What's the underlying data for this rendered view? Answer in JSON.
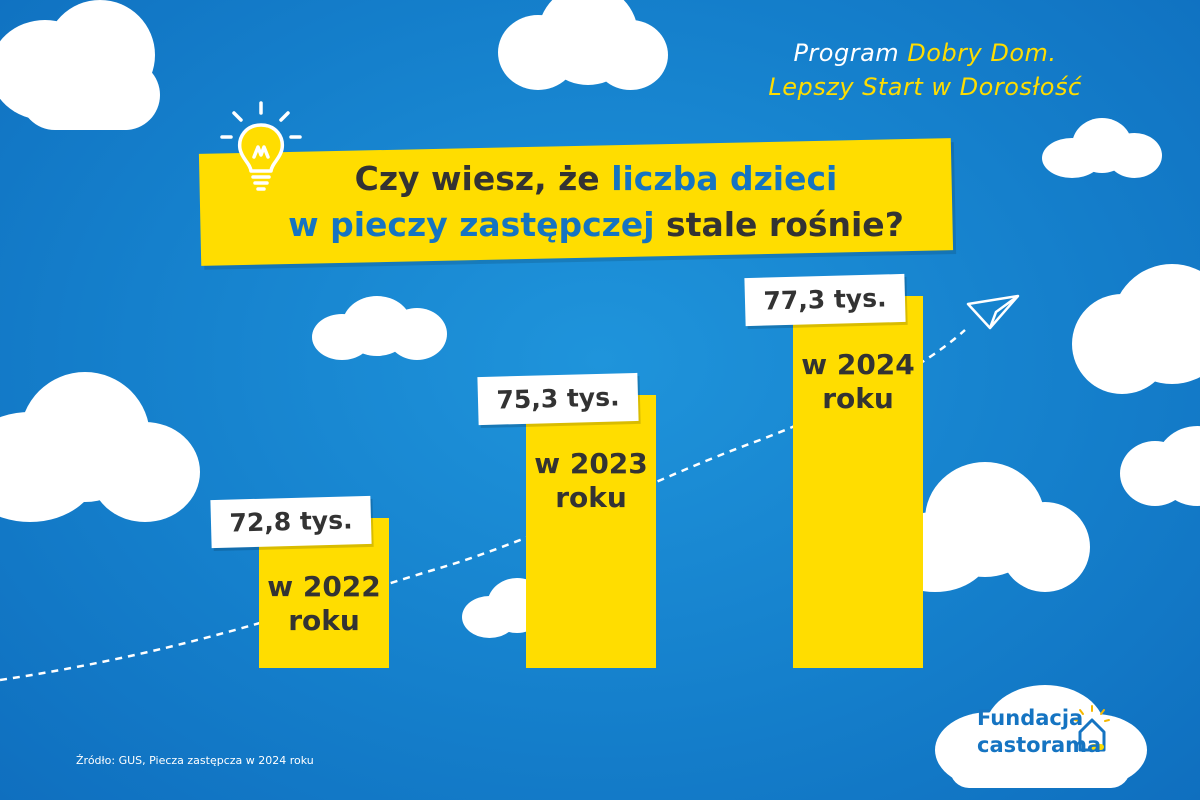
{
  "program": {
    "part1": "Program ",
    "part2": "Dobry Dom.",
    "part3": "Lepszy Start ",
    "part4": "w Dorosłość"
  },
  "headline": {
    "part1": "Czy wiesz, że ",
    "part2": "liczba dzieci",
    "part3": "w pieczy zastępczej",
    "part4": " stale rośnie?"
  },
  "chart_data": {
    "type": "bar",
    "title": "Czy wiesz, że liczba dzieci w pieczy zastępczej stale rośnie?",
    "categories": [
      "w 2022 roku",
      "w 2023 roku",
      "w 2024 roku"
    ],
    "values": [
      72.8,
      75.3,
      77.3
    ],
    "value_labels": [
      "72,8 tys.",
      "75,3 tys.",
      "77,3 tys."
    ],
    "bar_labels": [
      {
        "line1": "w 2022",
        "line2": "roku"
      },
      {
        "line1": "w 2023",
        "line2": "roku"
      },
      {
        "line1": "w 2024",
        "line2": "roku"
      }
    ],
    "unit": "tys.",
    "grid": false,
    "legend": "none"
  },
  "source": "Źródło: GUS, Piecza zastępcza w 2024 roku",
  "logo": {
    "line1": "Fundacja",
    "line2": "castorama"
  },
  "colors": {
    "background": "#1580cc",
    "accent_yellow": "#ffdd00",
    "text_dark": "#333333",
    "brand_blue": "#1574c2"
  }
}
